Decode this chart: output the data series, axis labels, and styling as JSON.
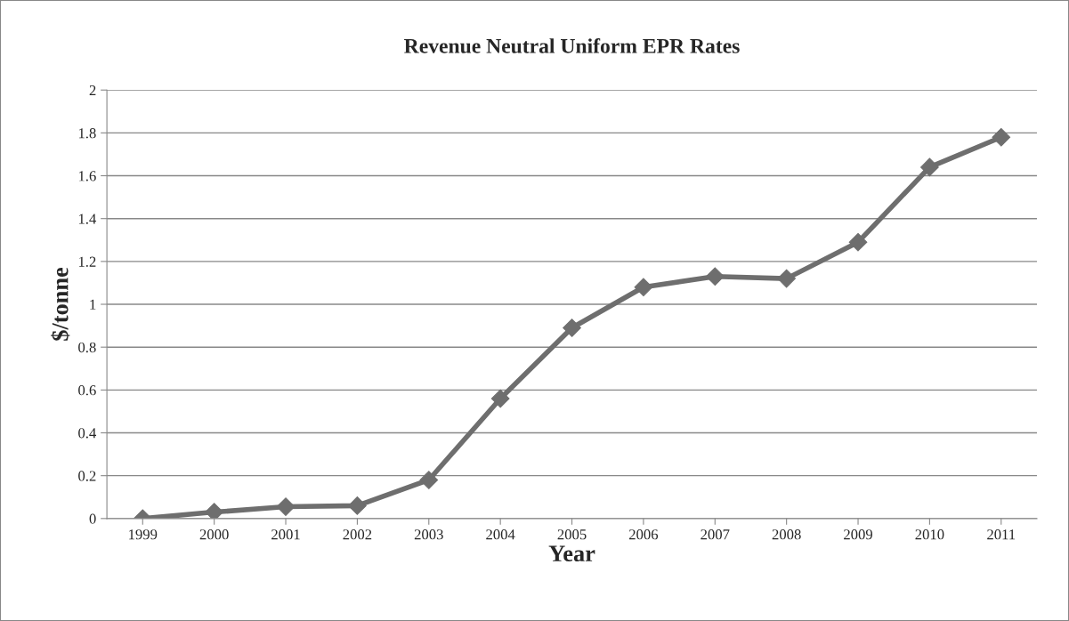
{
  "chart_data": {
    "type": "line",
    "title": "Revenue Neutral Uniform EPR Rates",
    "xlabel": "Year",
    "ylabel": "$/tonne",
    "categories": [
      "1999",
      "2000",
      "2001",
      "2002",
      "2003",
      "2004",
      "2005",
      "2006",
      "2007",
      "2008",
      "2009",
      "2010",
      "2011"
    ],
    "series": [
      {
        "color": "#6e6e6e",
        "values": [
          0.0,
          0.03,
          0.055,
          0.06,
          0.18,
          0.56,
          0.89,
          1.08,
          1.13,
          1.12,
          1.29,
          1.64,
          1.78
        ]
      }
    ],
    "ylim": [
      0,
      2
    ],
    "yticks": [
      0,
      0.2,
      0.4,
      0.6,
      0.8,
      1,
      1.2,
      1.4,
      1.6,
      1.8,
      2
    ],
    "grid": "y",
    "legend": false,
    "marker": "diamond",
    "line_style": "solid"
  }
}
